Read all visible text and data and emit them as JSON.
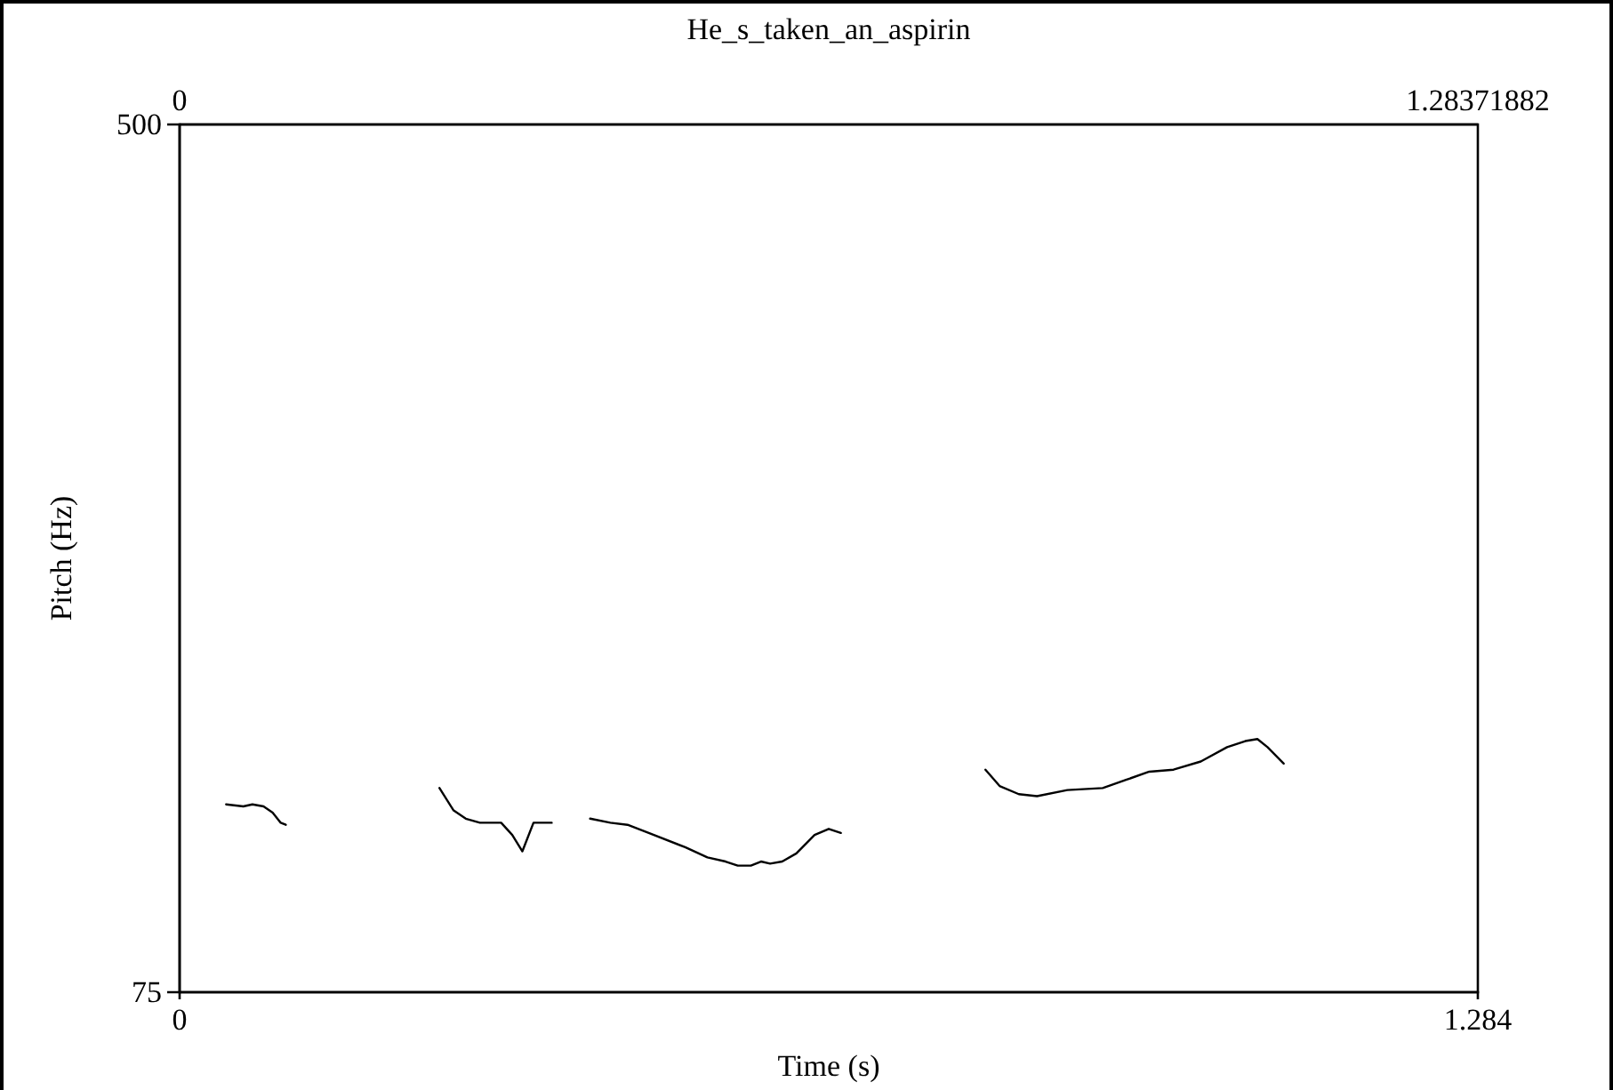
{
  "chart_data": {
    "type": "line",
    "title": "He_s_taken_an_aspirin",
    "xlabel": "Time (s)",
    "ylabel": "Pitch (Hz)",
    "xlim": [
      0,
      1.284
    ],
    "xticks": [
      0,
      1.284
    ],
    "x2lim": [
      0,
      1.28371882
    ],
    "x2ticks": [
      0,
      1.28371882
    ],
    "ylim": [
      75,
      500
    ],
    "yticks": [
      75,
      500
    ],
    "grid": false,
    "marker": "none",
    "line_style": "solid",
    "series": [
      {
        "color": "#000000",
        "x": [
          0.046,
          0.063,
          0.072,
          0.083,
          0.092,
          0.1,
          0.105,
          0.18,
          0.257,
          0.271,
          0.283,
          0.297,
          0.318,
          0.329,
          0.339,
          0.35,
          0.355,
          0.368,
          0.39,
          0.406,
          0.426,
          0.443,
          0.464,
          0.5,
          0.522,
          0.54,
          0.552,
          0.565,
          0.575,
          0.584,
          0.596,
          0.61,
          0.628,
          0.642,
          0.654,
          0.72,
          0.797,
          0.811,
          0.83,
          0.848,
          0.878,
          0.913,
          0.936,
          0.959,
          0.983,
          1.01,
          1.036,
          1.054,
          1.066,
          1.076,
          1.092
        ],
        "values": [
          167,
          166,
          167,
          166,
          163,
          158,
          157,
          null,
          175,
          164,
          160,
          158,
          158,
          152,
          144,
          158,
          158,
          158,
          null,
          160,
          158,
          157,
          153,
          146,
          141,
          139,
          137,
          137,
          139,
          138,
          139,
          143,
          152,
          155,
          153,
          null,
          184,
          176,
          172,
          171,
          174,
          175,
          179,
          183,
          184,
          188,
          195,
          198,
          199,
          195,
          187
        ]
      }
    ]
  }
}
